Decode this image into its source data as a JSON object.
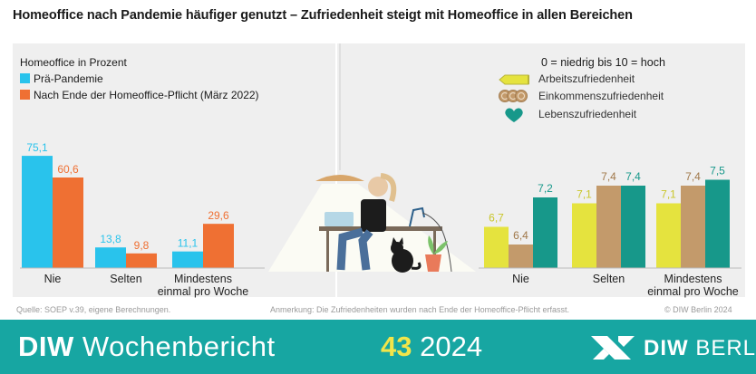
{
  "title": "Homeoffice nach Pandemie häufiger genutzt – Zufriedenheit steigt mit Homeoffice in allen Bereichen",
  "left_legend": {
    "title_bold": "Homeoffice",
    "title_rest": " in Prozent",
    "series1": "Prä-Pandemie",
    "series2": "Nach Ende der Homeoffice-Pflicht (März 2022)"
  },
  "right_legend": {
    "scale": "0 = niedrig bis 10 = hoch",
    "item1": "Arbeitszufriedenheit",
    "item2": "Einkommenszufriedenheit",
    "item3": "Lebenszufriedenheit"
  },
  "colors": {
    "blue": "#29c3ec",
    "orange": "#ef7033",
    "yellow": "#e5e33e",
    "tan": "#c39a6b",
    "teal": "#17988a",
    "footer": "#17a6a2"
  },
  "chart_data": [
    {
      "type": "bar",
      "categories": [
        "Nie",
        "Selten",
        "Mindestens einmal pro Woche"
      ],
      "series": [
        {
          "name": "Prä-Pandemie",
          "values": [
            75.1,
            13.8,
            11.1
          ]
        },
        {
          "name": "Nach Ende der Homeoffice-Pflicht (März 2022)",
          "values": [
            60.6,
            9.8,
            29.6
          ]
        }
      ],
      "ylabel": "Homeoffice in Prozent",
      "ylim": [
        0,
        80
      ],
      "grid": false
    },
    {
      "type": "bar",
      "categories": [
        "Nie",
        "Selten",
        "Mindestens einmal pro Woche"
      ],
      "series": [
        {
          "name": "Arbeitszufriedenheit",
          "values": [
            6.7,
            7.1,
            7.1
          ]
        },
        {
          "name": "Einkommenszufriedenheit",
          "values": [
            6.4,
            7.4,
            7.4
          ]
        },
        {
          "name": "Lebenszufriedenheit",
          "values": [
            7.2,
            7.4,
            7.5
          ]
        }
      ],
      "ylabel": "0 = niedrig bis 10 = hoch",
      "ylim": [
        6,
        7.9
      ],
      "grid": false
    }
  ],
  "notes": {
    "source": "Quelle: SOEP v.39, eigene Berechnungen.",
    "remark": "Anmerkung: Die Zufriedenheiten wurden nach Ende der Homeoffice-Pflicht erfasst.",
    "copyright": "© DIW Berlin 2024"
  },
  "footer": {
    "brand1": "DIW",
    "brand2": " Wochenbericht",
    "issue": "43",
    "year": " 2024",
    "logo1": "DIW",
    "logo2": " BERLIN"
  }
}
